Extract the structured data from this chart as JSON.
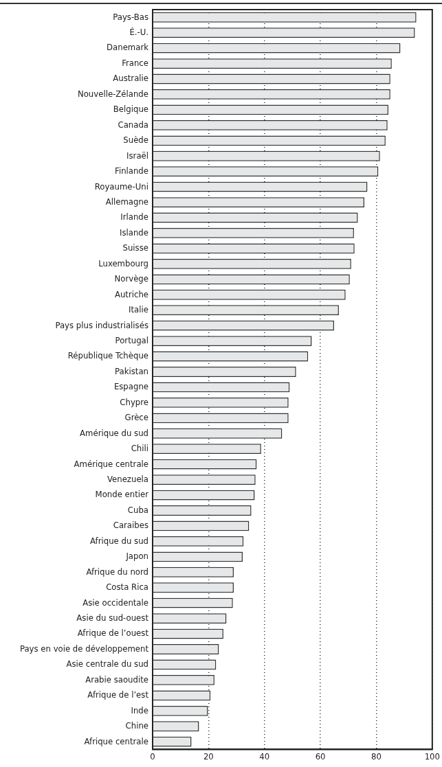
{
  "chart_data": {
    "type": "bar",
    "orientation": "horizontal",
    "categories": [
      "Pays-Bas",
      "É.-U.",
      "Danemark",
      "France",
      "Australie",
      "Nouvelle-Zélande",
      "Belgique",
      "Canada",
      "Suède",
      "Israël",
      "Finlande",
      "Royaume-Uni",
      "Allemagne",
      "Irlande",
      "Islande",
      "Suisse",
      "Luxembourg",
      "Norvège",
      "Autriche",
      "Italie",
      "Pays plus industrialisés",
      "Portugal",
      "République Tchèque",
      "Pakistan",
      "Espagne",
      "Chypre",
      "Grèce",
      "Amérique du sud",
      "Chili",
      "Amérique centrale",
      "Venezuela",
      "Monde entier",
      "Cuba",
      "Caraibes",
      "Afrique du sud",
      "Japon",
      "Afrique du nord",
      "Costa Rica",
      "Asie occidentale",
      "Asie du sud-ouest",
      "Afrique de l’ouest",
      "Pays en voie de développement",
      "Asie centrale du sud",
      "Arabie saoudite",
      "Afrique de l’est",
      "Inde",
      "Chine",
      "Afrique centrale"
    ],
    "values": [
      94.3,
      93.8,
      88.6,
      85.5,
      85.0,
      85.0,
      84.3,
      84.0,
      83.3,
      81.3,
      80.7,
      76.8,
      75.7,
      73.4,
      72.0,
      72.2,
      71.0,
      70.5,
      69.0,
      66.6,
      64.9,
      56.9,
      55.6,
      51.3,
      49.0,
      48.6,
      48.6,
      46.3,
      38.8,
      37.2,
      36.8,
      36.5,
      35.3,
      34.5,
      32.5,
      32.2,
      29.0,
      29.0,
      28.7,
      26.4,
      25.3,
      23.7,
      22.7,
      22.1,
      20.7,
      19.8,
      16.6,
      13.9
    ],
    "color": "#e6e7e8",
    "xlim": [
      0,
      100
    ],
    "xticks": [
      0,
      20,
      40,
      60,
      80,
      100
    ],
    "grid": "x",
    "line_style": "dotted",
    "legend": false
  }
}
